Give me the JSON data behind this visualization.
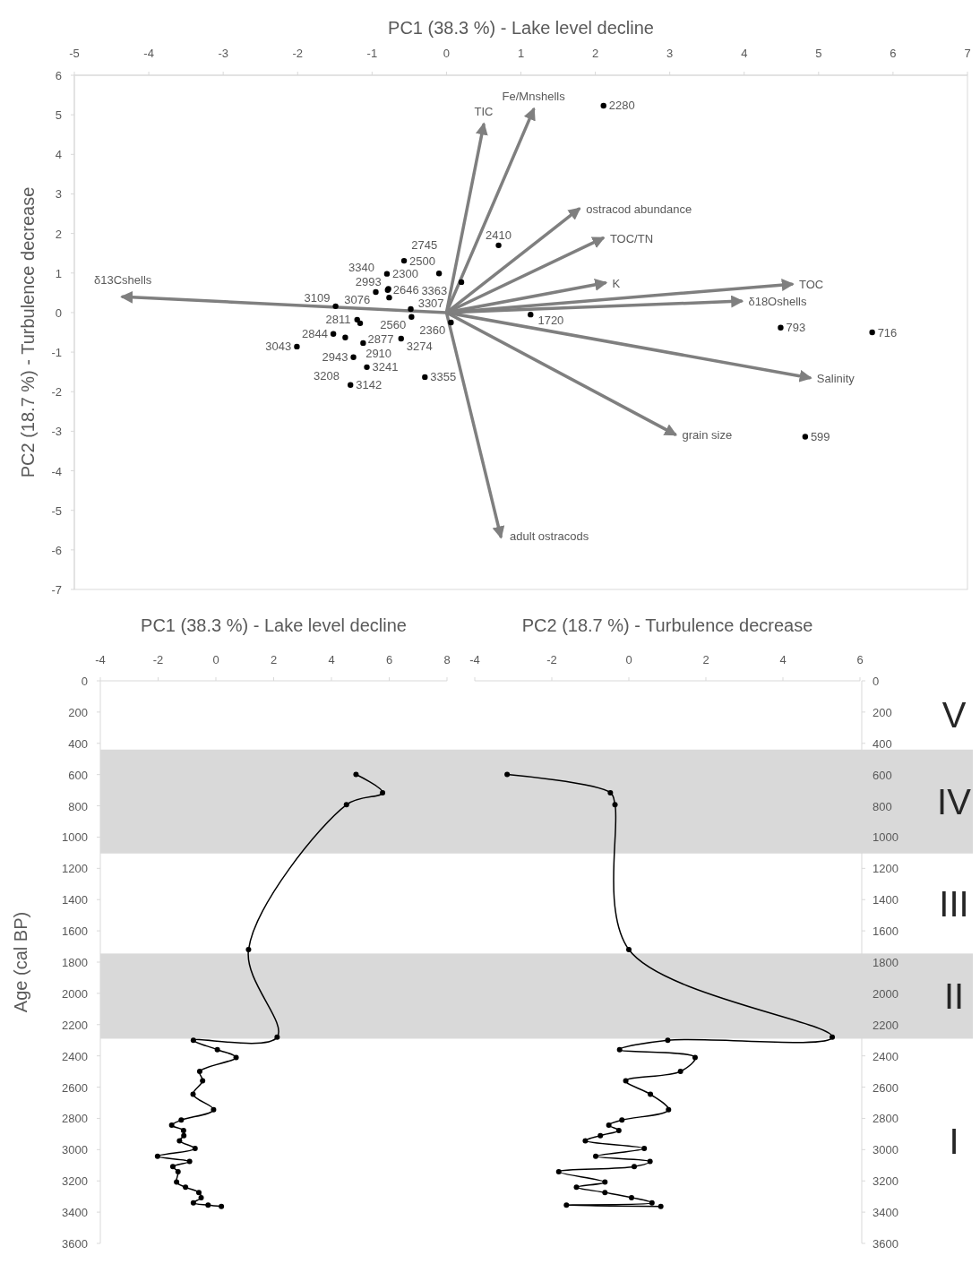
{
  "chart_data": [
    {
      "type": "scatter",
      "xlabel": "PC1 (38.3 %) - Lake level decline",
      "ylabel": "PC2 (18.7 %) - Turbulence decrease",
      "xlim": [
        -5,
        7
      ],
      "ylim": [
        -7,
        6
      ],
      "xticks": [
        -5,
        -4,
        -3,
        -2,
        -1,
        0,
        1,
        2,
        3,
        4,
        5,
        6,
        7
      ],
      "yticks": [
        -7,
        -6,
        -5,
        -4,
        -3,
        -2,
        -1,
        0,
        1,
        2,
        3,
        4,
        5,
        6
      ],
      "annotations": [
        {
          "text": "599",
          "x": 4.82,
          "y": -3.14
        },
        {
          "text": "716",
          "x": 5.72,
          "y": -0.5
        },
        {
          "text": "793",
          "x": 4.49,
          "y": -0.38
        },
        {
          "text": "1720",
          "x": 1.13,
          "y": -0.05
        },
        {
          "text": "2280",
          "x": 2.11,
          "y": 5.23
        },
        {
          "text": "2300",
          "x": -0.8,
          "y": 0.98
        },
        {
          "text": "2360",
          "x": 0.06,
          "y": -0.25
        },
        {
          "text": "2410",
          "x": 0.7,
          "y": 1.7
        },
        {
          "text": "2500",
          "x": -0.57,
          "y": 1.31
        },
        {
          "text": "2560",
          "x": -0.47,
          "y": -0.11
        },
        {
          "text": "2646",
          "x": -0.79,
          "y": 0.57
        },
        {
          "text": "2745",
          "x": -0.1,
          "y": 0.99
        },
        {
          "text": "2811",
          "x": -1.2,
          "y": -0.18
        },
        {
          "text": "2844",
          "x": -1.52,
          "y": -0.54
        },
        {
          "text": "2877",
          "x": -1.16,
          "y": -0.27
        },
        {
          "text": "2910",
          "x": -1.12,
          "y": -0.77
        },
        {
          "text": "2943",
          "x": -1.25,
          "y": -1.13
        },
        {
          "text": "2993",
          "x": -0.77,
          "y": 0.38
        },
        {
          "text": "3043",
          "x": -2.01,
          "y": -0.86
        },
        {
          "text": "3076",
          "x": -0.95,
          "y": 0.52
        },
        {
          "text": "3109",
          "x": -1.49,
          "y": 0.16
        },
        {
          "text": "3142",
          "x": -1.29,
          "y": -1.83
        },
        {
          "text": "3208",
          "x": -1.36,
          "y": -0.63
        },
        {
          "text": "3241",
          "x": -1.07,
          "y": -1.38
        },
        {
          "text": "3274",
          "x": -0.61,
          "y": -0.66
        },
        {
          "text": "3307",
          "x": -0.48,
          "y": 0.09
        },
        {
          "text": "3340",
          "x": -0.78,
          "y": 0.6
        },
        {
          "text": "3355",
          "x": -0.29,
          "y": -1.63
        },
        {
          "text": "3363",
          "x": 0.2,
          "y": 0.77
        }
      ],
      "series": [
        {
          "type": "scatter",
          "marker": "circle",
          "color": "#000000",
          "x": [
            4.82,
            5.72,
            4.49,
            1.13,
            2.11,
            -0.8,
            0.06,
            0.7,
            -0.57,
            -0.47,
            -0.79,
            -0.1,
            -1.2,
            -1.52,
            -1.16,
            -1.12,
            -1.25,
            -0.77,
            -2.01,
            -0.95,
            -1.49,
            -1.29,
            -1.36,
            -1.07,
            -0.61,
            -0.48,
            -0.78,
            -0.29,
            0.2
          ],
          "values": [
            -3.14,
            -0.5,
            -0.38,
            -0.05,
            5.23,
            0.98,
            -0.25,
            1.7,
            1.31,
            -0.11,
            0.57,
            0.99,
            -0.18,
            -0.54,
            -0.27,
            -0.77,
            -1.13,
            0.38,
            -0.86,
            0.52,
            0.16,
            -1.83,
            -0.63,
            -1.38,
            -0.66,
            0.09,
            0.6,
            -1.63,
            0.77
          ]
        },
        {
          "type": "line",
          "marker": "none",
          "name": "δ13Cshells",
          "color": "#7f7f7f",
          "x": [
            0,
            -4.35
          ],
          "values": [
            0,
            0.4
          ]
        },
        {
          "type": "line",
          "marker": "none",
          "name": "TIC",
          "color": "#7f7f7f",
          "x": [
            0,
            0.5
          ],
          "values": [
            0,
            4.75
          ]
        },
        {
          "type": "line",
          "marker": "none",
          "name": "Fe/Mnshells",
          "color": "#7f7f7f",
          "x": [
            0,
            1.17
          ],
          "values": [
            0,
            5.13
          ]
        },
        {
          "type": "line",
          "marker": "none",
          "name": "ostracod abundance",
          "color": "#7f7f7f",
          "x": [
            0,
            1.78
          ],
          "values": [
            0,
            2.62
          ]
        },
        {
          "type": "line",
          "marker": "none",
          "name": "TOC/TN",
          "color": "#7f7f7f",
          "x": [
            0,
            2.1
          ],
          "values": [
            0,
            1.88
          ]
        },
        {
          "type": "line",
          "marker": "none",
          "name": "K",
          "color": "#7f7f7f",
          "x": [
            0,
            2.13
          ],
          "values": [
            0,
            0.75
          ]
        },
        {
          "type": "line",
          "marker": "none",
          "name": "TOC",
          "color": "#7f7f7f",
          "x": [
            0,
            4.64
          ],
          "values": [
            0,
            0.72
          ]
        },
        {
          "type": "line",
          "marker": "none",
          "name": "δ18Oshells",
          "color": "#7f7f7f",
          "x": [
            0,
            3.96
          ],
          "values": [
            0,
            0.29
          ]
        },
        {
          "type": "line",
          "marker": "none",
          "name": "Salinity",
          "color": "#7f7f7f",
          "x": [
            0,
            4.88
          ],
          "values": [
            0,
            -1.65
          ]
        },
        {
          "type": "line",
          "marker": "none",
          "name": "grain size",
          "color": "#7f7f7f",
          "x": [
            0,
            3.07
          ],
          "values": [
            0,
            -3.08
          ]
        },
        {
          "type": "line",
          "marker": "none",
          "name": "adult ostracods",
          "color": "#7f7f7f",
          "x": [
            0,
            0.73
          ],
          "values": [
            0,
            -5.66
          ]
        }
      ]
    },
    {
      "type": "line",
      "orientation": "horizontal",
      "xlabel": "PC1 (38.3 %) - Lake level decline",
      "ylabel": "Age (cal BP)",
      "xlim": [
        -4,
        8
      ],
      "xticks": [
        -4,
        -2,
        0,
        2,
        4,
        6,
        8
      ],
      "ylim": [
        3600,
        0
      ],
      "yticks": [
        0,
        200,
        400,
        600,
        800,
        1000,
        1200,
        1400,
        1600,
        1800,
        2000,
        2200,
        2400,
        2600,
        2800,
        3000,
        3200,
        3400,
        3600
      ],
      "marker": "circle",
      "line_style": "solid",
      "bands": [
        {
          "axis": "y",
          "from": 440,
          "to": 1105,
          "color": "#d9d9d9"
        },
        {
          "axis": "y",
          "from": 1745,
          "to": 2290,
          "color": "#d9d9d9"
        }
      ],
      "series": [
        {
          "color": "#000000",
          "x": [
            599,
            716,
            793,
            1720,
            2280,
            2300,
            2360,
            2410,
            2500,
            2560,
            2646,
            2745,
            2811,
            2844,
            2877,
            2910,
            2943,
            2993,
            3043,
            3076,
            3109,
            3142,
            3208,
            3241,
            3274,
            3307,
            3340,
            3355,
            3363
          ],
          "values": [
            4.85,
            5.77,
            4.52,
            1.13,
            2.12,
            -0.78,
            0.05,
            0.7,
            -0.56,
            -0.46,
            -0.79,
            -0.08,
            -1.2,
            -1.53,
            -1.12,
            -1.11,
            -1.26,
            -0.72,
            -2.02,
            -0.91,
            -1.49,
            -1.31,
            -1.36,
            -1.05,
            -0.59,
            -0.51,
            -0.78,
            -0.27,
            0.19
          ]
        }
      ]
    },
    {
      "type": "line",
      "orientation": "horizontal",
      "xlabel": "PC2 (18.7 %) - Turbulence decrease",
      "xlim": [
        -4,
        6
      ],
      "xticks": [
        -4,
        -2,
        0,
        2,
        4,
        6
      ],
      "ylim": [
        3600,
        0
      ],
      "yticks": [
        0,
        200,
        400,
        600,
        800,
        1000,
        1200,
        1400,
        1600,
        1800,
        2000,
        2200,
        2400,
        2600,
        2800,
        3000,
        3200,
        3400,
        3600
      ],
      "marker": "circle",
      "line_style": "solid",
      "bands": [
        {
          "axis": "y",
          "from": 440,
          "to": 1105,
          "label": "IV",
          "color": "#d9d9d9"
        },
        {
          "axis": "y",
          "from": 1745,
          "to": 2290,
          "label": "II",
          "color": "#d9d9d9"
        }
      ],
      "annotations": [
        "V",
        "III",
        "I"
      ],
      "series": [
        {
          "color": "#000000",
          "x": [
            599,
            716,
            793,
            1720,
            2280,
            2300,
            2360,
            2410,
            2500,
            2560,
            2646,
            2745,
            2811,
            2844,
            2877,
            2910,
            2943,
            2993,
            3043,
            3076,
            3109,
            3142,
            3208,
            3241,
            3274,
            3307,
            3340,
            3355,
            3363
          ],
          "values": [
            -3.16,
            -0.48,
            -0.36,
            0.0,
            5.28,
            1.01,
            -0.24,
            1.72,
            1.34,
            -0.08,
            0.56,
            1.03,
            -0.18,
            -0.52,
            -0.26,
            -0.74,
            -1.13,
            0.4,
            -0.86,
            0.55,
            0.14,
            -1.82,
            -0.62,
            -1.36,
            -0.62,
            0.07,
            0.6,
            -1.62,
            0.83
          ]
        }
      ]
    }
  ]
}
